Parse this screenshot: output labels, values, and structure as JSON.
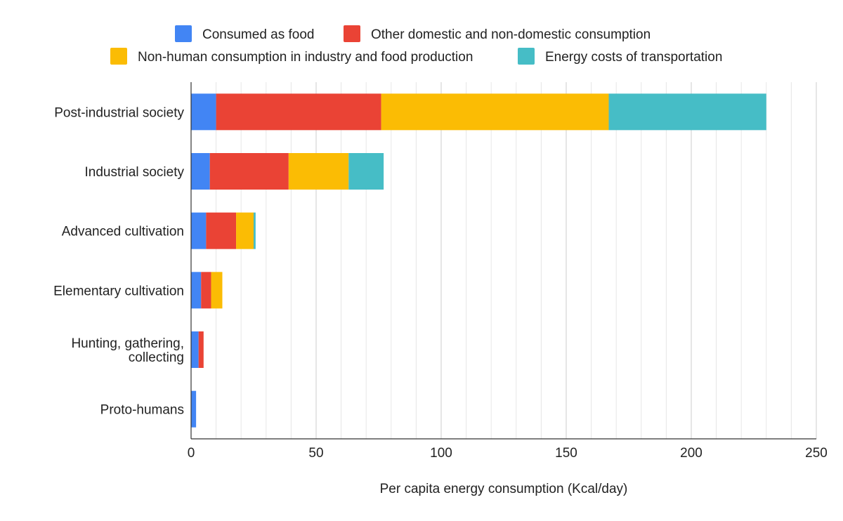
{
  "chart_data": {
    "type": "bar",
    "orientation": "horizontal",
    "stacked": true,
    "title": "",
    "xlabel": "Per capita energy consumption (Kcal/day)",
    "ylabel": "",
    "xlim": [
      0,
      250
    ],
    "x_ticks": [
      0,
      50,
      100,
      150,
      200,
      250
    ],
    "grid": true,
    "legend_position": "top",
    "categories": [
      [
        "Post-industrial society"
      ],
      [
        "Industrial society"
      ],
      [
        "Advanced cultivation"
      ],
      [
        "Elementary cultivation"
      ],
      [
        "Hunting, gathering,",
        "collecting"
      ],
      [
        "Proto-humans"
      ]
    ],
    "series": [
      {
        "name": "Consumed as food",
        "color": "#4285f4",
        "values": [
          10,
          7.5,
          6,
          4,
          3,
          2
        ]
      },
      {
        "name": "Other domestic and non-domestic consumption",
        "color": "#ea4335",
        "values": [
          66,
          31.5,
          12,
          4,
          2,
          0
        ]
      },
      {
        "name": "Non-human consumption in industry and food production",
        "color": "#fbbc04",
        "values": [
          91,
          24,
          7,
          4.5,
          0,
          0
        ]
      },
      {
        "name": "Energy costs of transportation",
        "color": "#46bdc6",
        "values": [
          63,
          14,
          0.8,
          0,
          0,
          0
        ]
      }
    ]
  }
}
